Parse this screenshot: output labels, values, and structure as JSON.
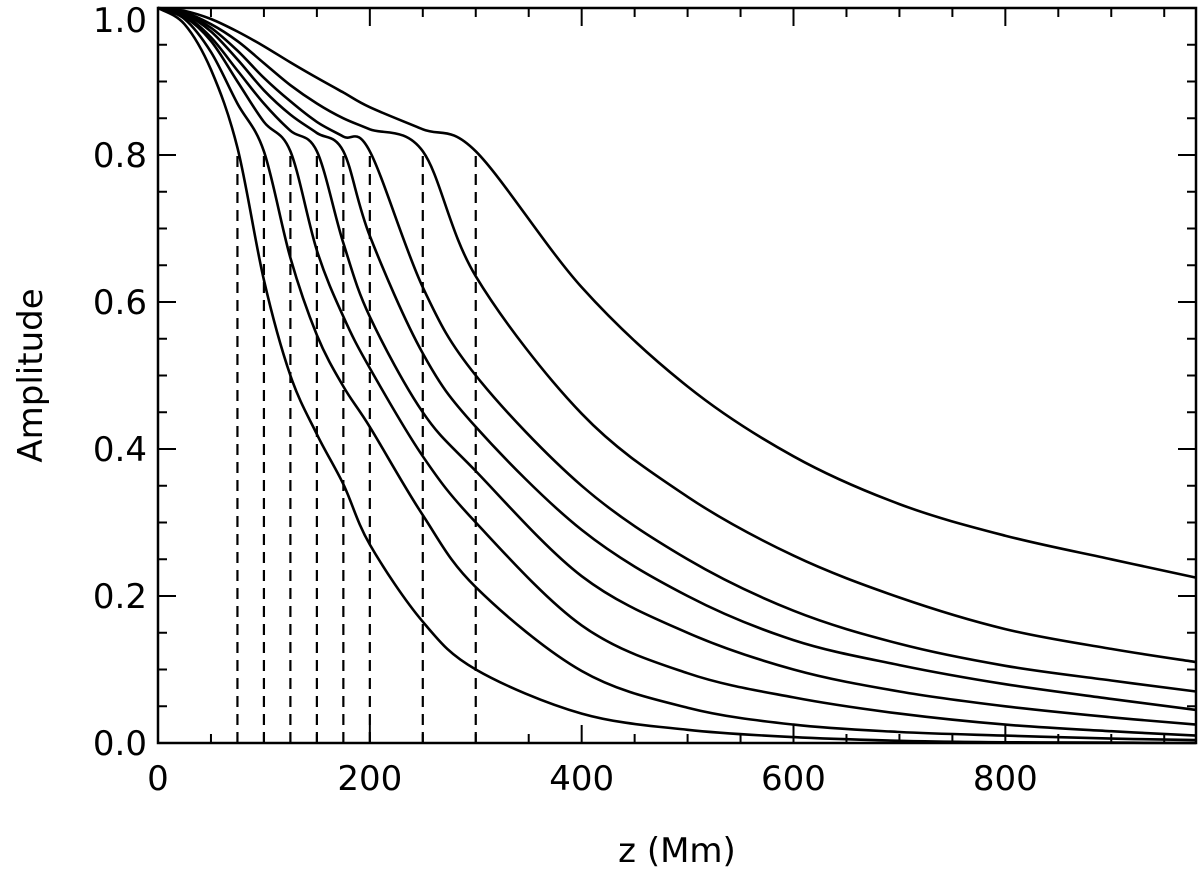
{
  "chart_data": {
    "type": "line",
    "title": "",
    "xlabel": "z (Mm)",
    "ylabel": "Amplitude",
    "xlim": [
      0,
      980
    ],
    "ylim": [
      0,
      1.0
    ],
    "x_ticks": [
      0,
      200,
      400,
      600,
      800
    ],
    "x_tick_labels": [
      "0",
      "200",
      "400",
      "600",
      "800"
    ],
    "x_minor_step": 50,
    "y_ticks": [
      0.0,
      0.2,
      0.4,
      0.6,
      0.8,
      1.0
    ],
    "y_tick_labels": [
      "0.0",
      "0.2",
      "0.4",
      "0.6",
      "0.8",
      "1.0"
    ],
    "y_minor_step": 0.05,
    "grid": false,
    "legend": "none",
    "series": [
      {
        "line_style": "solid",
        "x": [
          0,
          25,
          50,
          75,
          100,
          125,
          150,
          175,
          200,
          250,
          300,
          400,
          500,
          600,
          700,
          800,
          900,
          980
        ],
        "y": [
          1.0,
          0.978,
          0.916,
          0.81,
          0.63,
          0.5,
          0.42,
          0.352,
          0.27,
          0.165,
          0.1,
          0.04,
          0.018,
          0.008,
          0.003,
          0.001,
          0.0005,
          0.0
        ]
      },
      {
        "line_style": "solid",
        "x": [
          0,
          25,
          50,
          75,
          100,
          125,
          150,
          175,
          200,
          250,
          300,
          400,
          500,
          600,
          700,
          800,
          900,
          980
        ],
        "y": [
          1.0,
          0.985,
          0.94,
          0.87,
          0.805,
          0.66,
          0.555,
          0.485,
          0.43,
          0.31,
          0.212,
          0.098,
          0.048,
          0.025,
          0.015,
          0.01,
          0.006,
          0.004
        ]
      },
      {
        "line_style": "solid",
        "x": [
          0,
          25,
          50,
          75,
          100,
          125,
          150,
          175,
          200,
          250,
          300,
          400,
          500,
          600,
          700,
          800,
          900,
          980
        ],
        "y": [
          1.0,
          0.988,
          0.955,
          0.9,
          0.845,
          0.805,
          0.67,
          0.58,
          0.51,
          0.39,
          0.3,
          0.16,
          0.095,
          0.062,
          0.04,
          0.025,
          0.016,
          0.01
        ]
      },
      {
        "line_style": "solid",
        "x": [
          0,
          25,
          50,
          75,
          100,
          125,
          150,
          175,
          200,
          250,
          300,
          400,
          500,
          600,
          700,
          800,
          900,
          980
        ],
        "y": [
          1.0,
          0.99,
          0.96,
          0.915,
          0.87,
          0.833,
          0.805,
          0.68,
          0.58,
          0.45,
          0.37,
          0.227,
          0.15,
          0.1,
          0.07,
          0.05,
          0.035,
          0.025
        ]
      },
      {
        "line_style": "solid",
        "x": [
          0,
          25,
          50,
          75,
          100,
          125,
          150,
          175,
          200,
          250,
          300,
          400,
          500,
          600,
          700,
          800,
          900,
          980
        ],
        "y": [
          1.0,
          0.992,
          0.968,
          0.93,
          0.888,
          0.855,
          0.83,
          0.805,
          0.69,
          0.53,
          0.43,
          0.29,
          0.2,
          0.14,
          0.106,
          0.08,
          0.06,
          0.045
        ]
      },
      {
        "line_style": "solid",
        "x": [
          0,
          25,
          50,
          75,
          100,
          125,
          150,
          175,
          200,
          250,
          300,
          400,
          500,
          600,
          700,
          800,
          900,
          980
        ],
        "y": [
          1.0,
          0.993,
          0.973,
          0.942,
          0.905,
          0.873,
          0.845,
          0.825,
          0.805,
          0.62,
          0.5,
          0.35,
          0.25,
          0.18,
          0.135,
          0.105,
          0.085,
          0.07
        ]
      },
      {
        "line_style": "solid",
        "x": [
          0,
          25,
          50,
          75,
          100,
          125,
          150,
          175,
          200,
          250,
          300,
          400,
          500,
          600,
          700,
          800,
          900,
          980
        ],
        "y": [
          1.0,
          0.994,
          0.978,
          0.955,
          0.925,
          0.895,
          0.87,
          0.85,
          0.835,
          0.805,
          0.635,
          0.448,
          0.335,
          0.255,
          0.198,
          0.155,
          0.128,
          0.11
        ]
      },
      {
        "line_style": "solid",
        "x": [
          0,
          25,
          50,
          75,
          100,
          125,
          150,
          175,
          200,
          250,
          300,
          400,
          500,
          600,
          700,
          800,
          900,
          980
        ],
        "y": [
          1.0,
          0.996,
          0.985,
          0.968,
          0.948,
          0.926,
          0.905,
          0.885,
          0.865,
          0.835,
          0.805,
          0.62,
          0.485,
          0.39,
          0.325,
          0.282,
          0.25,
          0.225
        ]
      }
    ],
    "reference_lines": {
      "line_style": "dashed",
      "x": [
        75,
        100,
        125,
        150,
        175,
        200,
        250,
        300
      ],
      "y_from": 0.0,
      "y_to": 0.805
    }
  }
}
